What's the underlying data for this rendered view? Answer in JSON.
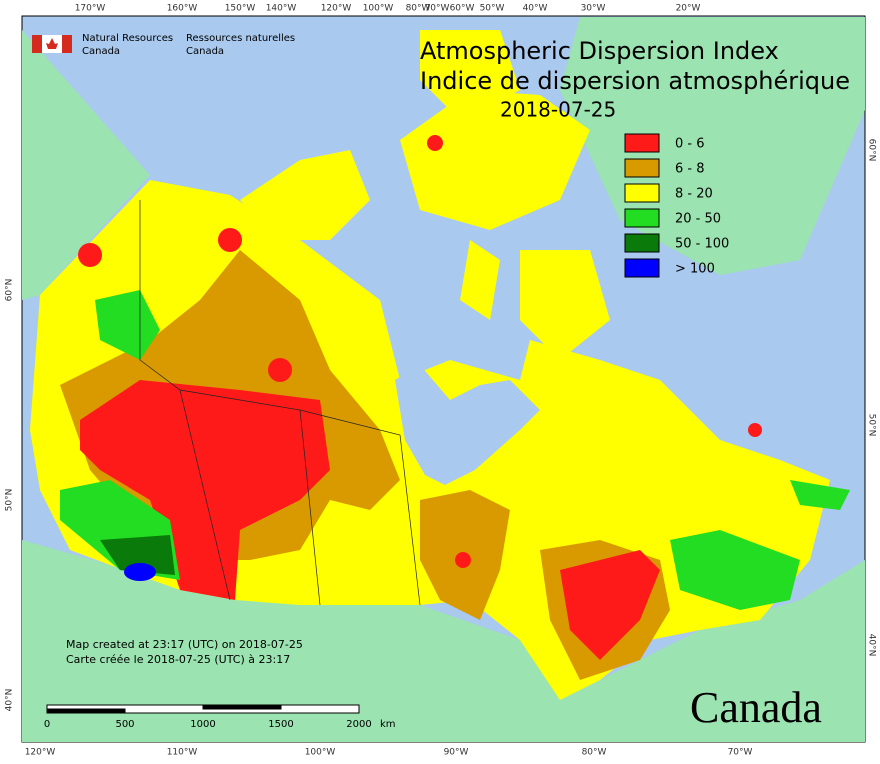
{
  "header": {
    "agency_en": [
      "Natural Resources",
      "Canada"
    ],
    "agency_fr": [
      "Ressources naturelles",
      "Canada"
    ],
    "title_en": "Atmospheric Dispersion Index",
    "title_fr": "Indice de dispersion atmosphérique",
    "date": "2018-07-25"
  },
  "legend": [
    {
      "label": "0 - 6",
      "color": "#ff1a1a"
    },
    {
      "label": "6 - 8",
      "color": "#d99a00"
    },
    {
      "label": "8 - 20",
      "color": "#ffff00"
    },
    {
      "label": "20 - 50",
      "color": "#22dd22"
    },
    {
      "label": "50 - 100",
      "color": "#0a7a0a"
    },
    {
      "label": "> 100",
      "color": "#0000ff"
    }
  ],
  "graticule": {
    "top": [
      "170°W",
      "160°W",
      "150°W",
      "140°W",
      "120°W",
      "100°W",
      "80°W",
      "70°W",
      "60°W",
      "50°W",
      "40°W",
      "30°W",
      "20°W"
    ],
    "bottom": [
      "120°W",
      "110°W",
      "100°W",
      "90°W",
      "80°W",
      "70°W"
    ],
    "left": [
      "60°N",
      "50°N",
      "40°N"
    ],
    "right": [
      "60°N",
      "50°N",
      "40°N"
    ]
  },
  "footer": {
    "created_en": "Map created at 23:17 (UTC) on 2018-07-25",
    "created_fr": "Carte créée le 2018-07-25 (UTC) à 23:17",
    "scale_labels": [
      "0",
      "500",
      "1000",
      "1500",
      "2000"
    ],
    "scale_unit": "km",
    "wordmark": "Canada"
  }
}
